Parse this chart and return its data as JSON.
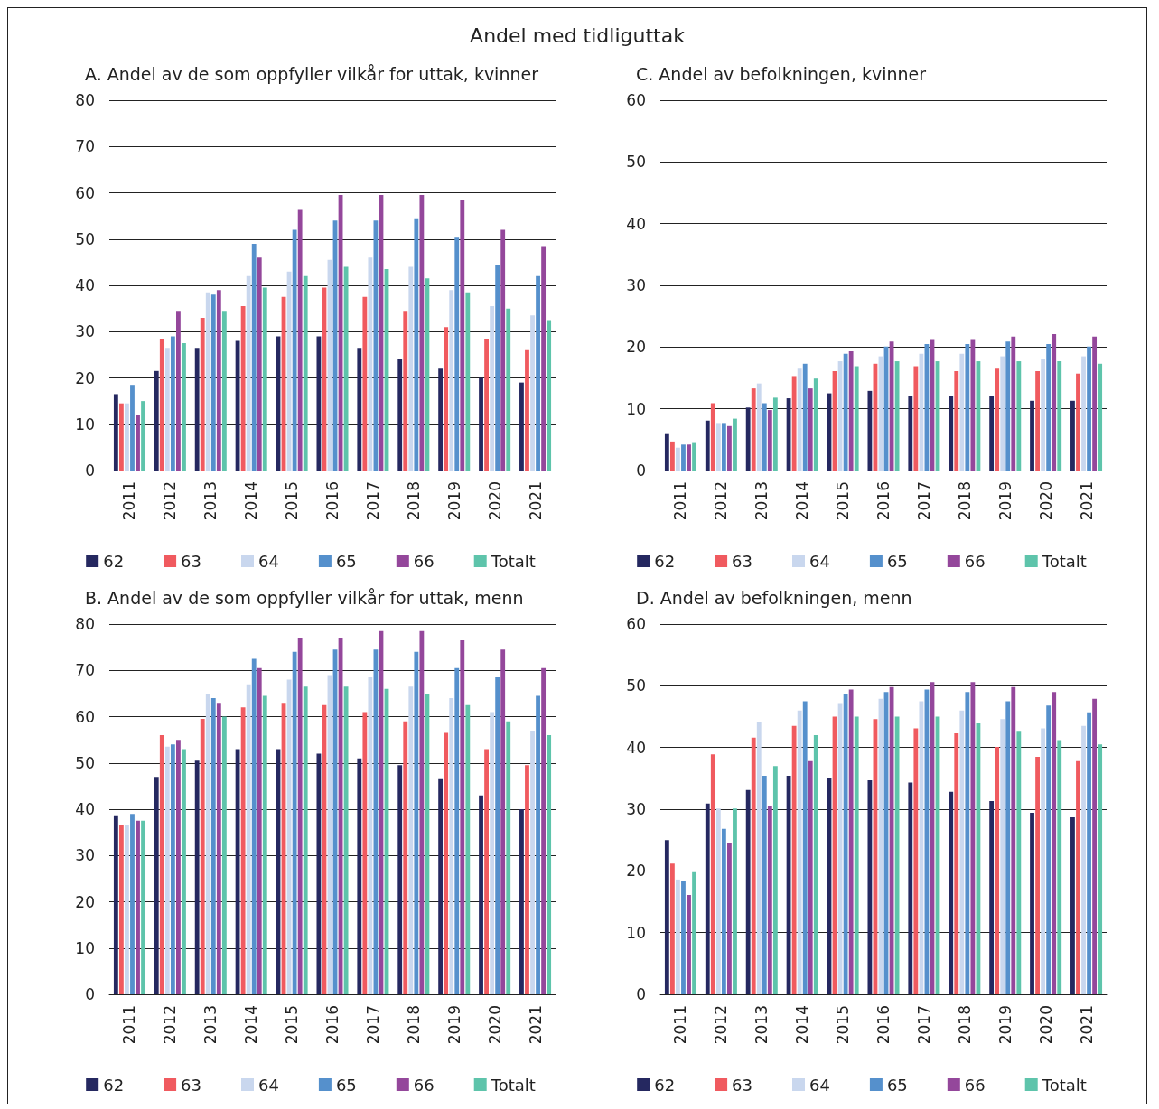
{
  "chart_data": [
    {
      "type": "bar",
      "title": "Andel med tidliguttak",
      "subtitle": "A. Andel av de som oppfyller vilkår for uttak, kvinner",
      "categories": [
        "2011",
        "2012",
        "2013",
        "2014",
        "2015",
        "2016",
        "2017",
        "2018",
        "2019",
        "2020",
        "2021"
      ],
      "ylim": [
        0,
        80
      ],
      "yticks": [
        0,
        10,
        20,
        30,
        40,
        50,
        60,
        70,
        80
      ],
      "grid": "y",
      "legend": "bottom",
      "series": [
        {
          "name": "62",
          "color": "#252860",
          "values": [
            16.5,
            21.5,
            26.5,
            28,
            29,
            29,
            26.5,
            24,
            22,
            20,
            19
          ]
        },
        {
          "name": "63",
          "color": "#f05a5f",
          "values": [
            14.5,
            28.5,
            33,
            35.5,
            37.5,
            39.5,
            37.5,
            34.5,
            31,
            28.5,
            26
          ]
        },
        {
          "name": "64",
          "color": "#c9d7ee",
          "values": [
            14.5,
            26.5,
            38.5,
            42,
            43,
            45.5,
            46,
            44,
            39,
            35.5,
            33.5
          ]
        },
        {
          "name": "65",
          "color": "#5590cc",
          "values": [
            18.5,
            29,
            38,
            49,
            52,
            54,
            54,
            54.5,
            50.5,
            44.5,
            42
          ]
        },
        {
          "name": "66",
          "color": "#94479b",
          "values": [
            12,
            34.5,
            39,
            46,
            56.5,
            59.5,
            59.5,
            59.5,
            58.5,
            52,
            48.5
          ]
        },
        {
          "name": "Totalt",
          "color": "#5ec4ab",
          "values": [
            15,
            27.5,
            34.5,
            39.5,
            42,
            44,
            43.5,
            41.5,
            38.5,
            35,
            32.5
          ]
        }
      ]
    },
    {
      "type": "bar",
      "title": "C. Andel av befolkningen, kvinner",
      "categories": [
        "2011",
        "2012",
        "2013",
        "2014",
        "2015",
        "2016",
        "2017",
        "2018",
        "2019",
        "2020",
        "2021"
      ],
      "ylim": [
        0,
        60
      ],
      "yticks": [
        0,
        10,
        20,
        30,
        40,
        50,
        60
      ],
      "grid": "y",
      "legend": "bottom",
      "series": [
        {
          "name": "62",
          "color": "#252860",
          "values": [
            5.9,
            8.1,
            10.2,
            11.7,
            12.5,
            12.9,
            12.1,
            12.1,
            12.1,
            11.3,
            11.3
          ]
        },
        {
          "name": "63",
          "color": "#f05a5f",
          "values": [
            4.7,
            10.9,
            13.3,
            15.3,
            16.1,
            17.3,
            16.9,
            16.1,
            16.5,
            16.1,
            15.7
          ]
        },
        {
          "name": "64",
          "color": "#c9d7ee",
          "values": [
            3.7,
            7.7,
            14.1,
            16.5,
            17.7,
            18.5,
            18.9,
            18.9,
            18.5,
            18.1,
            18.5
          ]
        },
        {
          "name": "65",
          "color": "#5590cc",
          "values": [
            4.2,
            7.7,
            10.9,
            17.3,
            18.9,
            20.1,
            20.5,
            20.5,
            20.9,
            20.5,
            20.1
          ]
        },
        {
          "name": "66",
          "color": "#94479b",
          "values": [
            4.2,
            7.2,
            9.8,
            13.3,
            19.3,
            20.9,
            21.3,
            21.3,
            21.7,
            22.1,
            21.7
          ]
        },
        {
          "name": "Totalt",
          "color": "#5ec4ab",
          "values": [
            4.6,
            8.4,
            11.8,
            14.9,
            16.9,
            17.7,
            17.7,
            17.7,
            17.7,
            17.7,
            17.3
          ]
        }
      ]
    },
    {
      "type": "bar",
      "title": "B. Andel av de som oppfyller vilkår for uttak, menn",
      "categories": [
        "2011",
        "2012",
        "2013",
        "2014",
        "2015",
        "2016",
        "2017",
        "2018",
        "2019",
        "2020",
        "2021"
      ],
      "ylim": [
        0,
        80
      ],
      "yticks": [
        0,
        10,
        20,
        30,
        40,
        50,
        60,
        70,
        80
      ],
      "grid": "y",
      "legend": "bottom",
      "series": [
        {
          "name": "62",
          "color": "#252860",
          "values": [
            38.5,
            47,
            50.5,
            53,
            53,
            52,
            51,
            49.5,
            46.5,
            43,
            40
          ]
        },
        {
          "name": "63",
          "color": "#f05a5f",
          "values": [
            36.5,
            56,
            59.5,
            62,
            63,
            62.5,
            61,
            59,
            56.5,
            53,
            49.5
          ]
        },
        {
          "name": "64",
          "color": "#c9d7ee",
          "values": [
            36.5,
            53.5,
            65,
            67,
            68,
            69,
            68.5,
            66.5,
            64,
            61,
            57
          ]
        },
        {
          "name": "65",
          "color": "#5590cc",
          "values": [
            39,
            54,
            64,
            72.5,
            74,
            74.5,
            74.5,
            74,
            70.5,
            68.5,
            64.5
          ]
        },
        {
          "name": "66",
          "color": "#94479b",
          "values": [
            37.5,
            55,
            63,
            70.5,
            77,
            77,
            78.5,
            78.5,
            76.5,
            74.5,
            70.5
          ]
        },
        {
          "name": "Totalt",
          "color": "#5ec4ab",
          "values": [
            37.5,
            53,
            60,
            64.5,
            66.5,
            66.5,
            66,
            65,
            62.5,
            59,
            56
          ]
        }
      ]
    },
    {
      "type": "bar",
      "title": "D. Andel av befolkningen, menn",
      "categories": [
        "2011",
        "2012",
        "2013",
        "2014",
        "2015",
        "2016",
        "2017",
        "2018",
        "2019",
        "2020",
        "2021"
      ],
      "ylim": [
        0,
        60
      ],
      "yticks": [
        0,
        10,
        20,
        30,
        40,
        50,
        60
      ],
      "grid": "y",
      "legend": "bottom",
      "series": [
        {
          "name": "62",
          "color": "#252860",
          "values": [
            25,
            30.9,
            33.1,
            35.4,
            35.1,
            34.7,
            34.3,
            32.8,
            31.3,
            29.4,
            28.7
          ]
        },
        {
          "name": "63",
          "color": "#f05a5f",
          "values": [
            21.2,
            38.9,
            41.6,
            43.5,
            45,
            44.6,
            43.1,
            42.3,
            40.1,
            38.5,
            37.8
          ]
        },
        {
          "name": "64",
          "color": "#c9d7ee",
          "values": [
            18.6,
            30.1,
            44.1,
            46,
            47.2,
            47.9,
            47.5,
            46,
            44.6,
            43.1,
            43.5
          ]
        },
        {
          "name": "65",
          "color": "#5590cc",
          "values": [
            18.3,
            26.8,
            35.4,
            47.5,
            48.6,
            49,
            49.4,
            49,
            47.5,
            46.8,
            45.7
          ]
        },
        {
          "name": "66",
          "color": "#94479b",
          "values": [
            16.1,
            24.5,
            30.5,
            37.8,
            49.4,
            49.8,
            50.6,
            50.6,
            49.8,
            49,
            47.9
          ]
        },
        {
          "name": "Totalt",
          "color": "#5ec4ab",
          "values": [
            19.8,
            30.1,
            37,
            42,
            45,
            45,
            45,
            43.9,
            42.7,
            41.2,
            40.5
          ]
        }
      ]
    }
  ]
}
